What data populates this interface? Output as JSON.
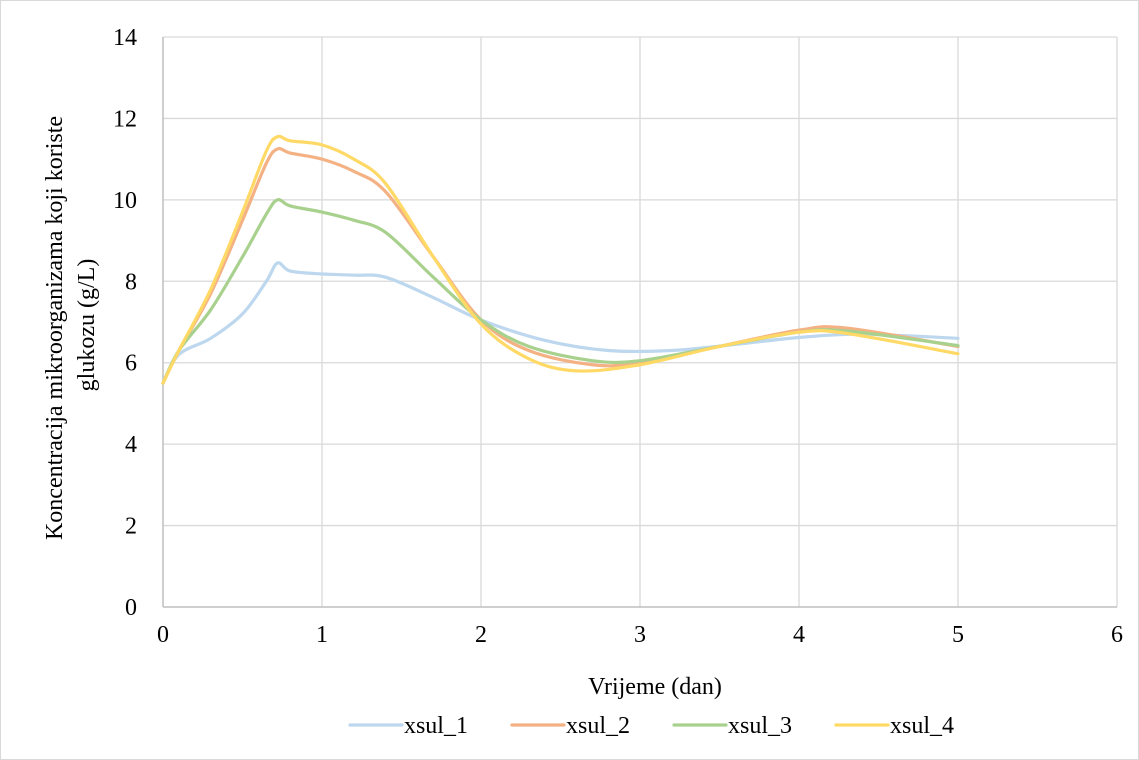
{
  "chart_data": {
    "type": "line",
    "title": "",
    "xlabel": "Vrijeme (dan)",
    "ylabel_lines": [
      "Koncentracija mikroorganizama koji koriste",
      "glukozu (g/L)"
    ],
    "xlim": [
      0,
      6
    ],
    "ylim": [
      0,
      14
    ],
    "xticks": [
      0,
      1,
      2,
      3,
      4,
      5,
      6
    ],
    "yticks": [
      0,
      2,
      4,
      6,
      8,
      10,
      12,
      14
    ],
    "grid": true,
    "legend_position": "bottom",
    "series": [
      {
        "name": "xsul_1",
        "color": "#bdd7ee",
        "points": [
          [
            0,
            5.5
          ],
          [
            0.1,
            6.2
          ],
          [
            0.3,
            6.6
          ],
          [
            0.5,
            7.2
          ],
          [
            0.65,
            8.0
          ],
          [
            0.72,
            8.45
          ],
          [
            0.8,
            8.25
          ],
          [
            1.0,
            8.18
          ],
          [
            1.2,
            8.15
          ],
          [
            1.4,
            8.1
          ],
          [
            1.7,
            7.6
          ],
          [
            2.0,
            7.05
          ],
          [
            2.4,
            6.55
          ],
          [
            2.8,
            6.3
          ],
          [
            3.2,
            6.3
          ],
          [
            3.6,
            6.45
          ],
          [
            4.0,
            6.62
          ],
          [
            4.4,
            6.7
          ],
          [
            5.0,
            6.6
          ]
        ]
      },
      {
        "name": "xsul_2",
        "color": "#f4b183",
        "points": [
          [
            0,
            5.5
          ],
          [
            0.1,
            6.3
          ],
          [
            0.3,
            7.7
          ],
          [
            0.5,
            9.5
          ],
          [
            0.65,
            10.9
          ],
          [
            0.72,
            11.25
          ],
          [
            0.8,
            11.15
          ],
          [
            1.0,
            11.0
          ],
          [
            1.2,
            10.7
          ],
          [
            1.4,
            10.2
          ],
          [
            1.7,
            8.6
          ],
          [
            2.0,
            7.05
          ],
          [
            2.3,
            6.3
          ],
          [
            2.7,
            5.95
          ],
          [
            3.0,
            6.0
          ],
          [
            3.5,
            6.4
          ],
          [
            4.0,
            6.8
          ],
          [
            4.3,
            6.85
          ],
          [
            5.0,
            6.4
          ]
        ]
      },
      {
        "name": "xsul_3",
        "color": "#a9d18e",
        "points": [
          [
            0,
            5.5
          ],
          [
            0.1,
            6.3
          ],
          [
            0.3,
            7.3
          ],
          [
            0.5,
            8.6
          ],
          [
            0.65,
            9.65
          ],
          [
            0.72,
            10.0
          ],
          [
            0.8,
            9.85
          ],
          [
            1.0,
            9.7
          ],
          [
            1.2,
            9.5
          ],
          [
            1.4,
            9.2
          ],
          [
            1.7,
            8.1
          ],
          [
            2.0,
            7.05
          ],
          [
            2.3,
            6.4
          ],
          [
            2.7,
            6.05
          ],
          [
            3.0,
            6.05
          ],
          [
            3.5,
            6.4
          ],
          [
            4.0,
            6.75
          ],
          [
            4.3,
            6.78
          ],
          [
            5.0,
            6.42
          ]
        ]
      },
      {
        "name": "xsul_4",
        "color": "#ffd966",
        "points": [
          [
            0,
            5.5
          ],
          [
            0.1,
            6.3
          ],
          [
            0.3,
            7.8
          ],
          [
            0.5,
            9.7
          ],
          [
            0.65,
            11.2
          ],
          [
            0.72,
            11.55
          ],
          [
            0.8,
            11.45
          ],
          [
            1.0,
            11.35
          ],
          [
            1.2,
            11.0
          ],
          [
            1.4,
            10.4
          ],
          [
            1.7,
            8.6
          ],
          [
            2.0,
            6.95
          ],
          [
            2.3,
            6.1
          ],
          [
            2.6,
            5.8
          ],
          [
            3.0,
            5.95
          ],
          [
            3.5,
            6.4
          ],
          [
            4.0,
            6.75
          ],
          [
            4.3,
            6.72
          ],
          [
            5.0,
            6.22
          ]
        ]
      }
    ]
  }
}
